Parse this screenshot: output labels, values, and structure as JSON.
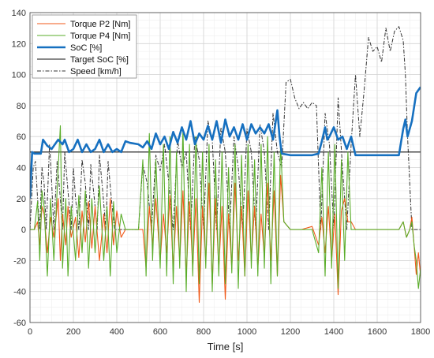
{
  "chart_data": {
    "type": "line",
    "title": "",
    "xlabel": "Time [s]",
    "ylabel": "",
    "xlim": [
      0,
      1800
    ],
    "ylim": [
      -60,
      140
    ],
    "xticks": [
      0,
      200,
      400,
      600,
      800,
      1000,
      1200,
      1400,
      1600,
      1800
    ],
    "yticks": [
      -60,
      -40,
      -20,
      0,
      20,
      40,
      60,
      80,
      100,
      120,
      140
    ],
    "xtick_labels": [
      "0",
      "200",
      "400",
      "600",
      "800",
      "1000",
      "1200",
      "1400",
      "1600",
      "1800"
    ],
    "ytick_labels": [
      "-60",
      "-40",
      "-20",
      "0",
      "20",
      "40",
      "60",
      "80",
      "100",
      "120",
      "140"
    ],
    "grid": true,
    "legend_position": "top-left",
    "series": [
      {
        "name": "Torque P2 [Nm]",
        "color": "#f05a1a",
        "style": "solid",
        "x": [
          0,
          20,
          35,
          45,
          55,
          65,
          80,
          95,
          110,
          130,
          140,
          150,
          165,
          175,
          190,
          210,
          225,
          240,
          255,
          270,
          285,
          300,
          320,
          340,
          355,
          370,
          385,
          400,
          420,
          440,
          460,
          500,
          520,
          535,
          550,
          565,
          580,
          600,
          615,
          630,
          645,
          660,
          675,
          690,
          705,
          720,
          735,
          750,
          765,
          780,
          795,
          810,
          825,
          840,
          855,
          870,
          885,
          900,
          915,
          930,
          945,
          960,
          975,
          990,
          1005,
          1020,
          1035,
          1050,
          1065,
          1080,
          1095,
          1110,
          1125,
          1140,
          1155,
          1170,
          1200,
          1250,
          1300,
          1330,
          1345,
          1360,
          1375,
          1390,
          1405,
          1420,
          1435,
          1450,
          1465,
          1480,
          1500,
          1550,
          1600,
          1650,
          1700,
          1720,
          1735,
          1750,
          1760,
          1770,
          1780,
          1790,
          1800
        ],
        "y": [
          0,
          0,
          5,
          -10,
          15,
          10,
          -15,
          8,
          -5,
          20,
          -20,
          10,
          -10,
          15,
          -5,
          8,
          -18,
          12,
          -8,
          18,
          -12,
          15,
          -20,
          10,
          -15,
          20,
          -10,
          12,
          -5,
          0,
          0,
          0,
          0,
          -25,
          15,
          -10,
          20,
          -20,
          10,
          -15,
          22,
          -25,
          15,
          -20,
          25,
          -30,
          18,
          -25,
          20,
          -47,
          15,
          -20,
          30,
          -35,
          20,
          -25,
          15,
          -45,
          10,
          -25,
          30,
          -20,
          15,
          -30,
          25,
          -20,
          15,
          -25,
          10,
          -18,
          30,
          -20,
          25,
          -30,
          35,
          5,
          0,
          0,
          2,
          -10,
          8,
          -15,
          15,
          -20,
          10,
          -42,
          12,
          20,
          5,
          5,
          0,
          0,
          0,
          0,
          0,
          5,
          -5,
          0,
          8,
          -10,
          -29,
          -15,
          -30
        ]
      },
      {
        "name": "Torque P4 [Nm]",
        "color": "#5aad2a",
        "style": "solid",
        "x": [
          0,
          20,
          35,
          45,
          55,
          65,
          80,
          95,
          110,
          130,
          140,
          150,
          165,
          175,
          190,
          210,
          225,
          240,
          255,
          270,
          285,
          300,
          320,
          340,
          355,
          370,
          385,
          400,
          420,
          440,
          460,
          500,
          520,
          535,
          550,
          565,
          580,
          600,
          615,
          630,
          645,
          660,
          675,
          690,
          705,
          720,
          735,
          750,
          765,
          780,
          795,
          810,
          825,
          840,
          855,
          870,
          885,
          900,
          915,
          930,
          945,
          960,
          975,
          990,
          1005,
          1020,
          1035,
          1050,
          1065,
          1080,
          1095,
          1110,
          1125,
          1140,
          1155,
          1170,
          1200,
          1250,
          1300,
          1330,
          1345,
          1360,
          1375,
          1390,
          1405,
          1420,
          1435,
          1450,
          1465,
          1480,
          1500,
          1550,
          1600,
          1650,
          1700,
          1720,
          1735,
          1750,
          1760,
          1770,
          1780,
          1790,
          1800
        ],
        "y": [
          0,
          0,
          18,
          -20,
          25,
          15,
          -30,
          20,
          -20,
          40,
          67,
          -25,
          20,
          -30,
          15,
          -20,
          22,
          -15,
          25,
          -25,
          20,
          -15,
          28,
          -20,
          15,
          -30,
          18,
          -15,
          10,
          0,
          0,
          0,
          45,
          -30,
          62,
          -20,
          45,
          -25,
          55,
          -30,
          60,
          -35,
          50,
          -25,
          65,
          -40,
          55,
          -30,
          60,
          -35,
          50,
          -25,
          55,
          -40,
          45,
          -30,
          50,
          -35,
          40,
          -28,
          55,
          -38,
          48,
          -30,
          55,
          -25,
          45,
          -30,
          55,
          -25,
          60,
          -35,
          50,
          -30,
          55,
          5,
          0,
          0,
          0,
          -15,
          40,
          -30,
          50,
          -25,
          55,
          -38,
          45,
          -20,
          50,
          0,
          0,
          0,
          0,
          0,
          0,
          5,
          -5,
          0,
          5,
          -10,
          -20,
          -38,
          -25
        ]
      },
      {
        "name": "SoC [%]",
        "color": "#1670c0",
        "style": "thick",
        "x": [
          0,
          10,
          20,
          50,
          60,
          80,
          100,
          130,
          150,
          160,
          180,
          200,
          220,
          240,
          260,
          280,
          300,
          320,
          340,
          360,
          380,
          400,
          420,
          440,
          460,
          500,
          520,
          540,
          560,
          580,
          600,
          620,
          640,
          660,
          680,
          700,
          720,
          740,
          760,
          780,
          800,
          820,
          840,
          860,
          880,
          900,
          920,
          940,
          960,
          980,
          1000,
          1020,
          1040,
          1060,
          1080,
          1100,
          1120,
          1140,
          1150,
          1160,
          1200,
          1250,
          1300,
          1330,
          1345,
          1360,
          1370,
          1380,
          1400,
          1420,
          1440,
          1460,
          1480,
          1500,
          1550,
          1600,
          1650,
          1700,
          1720,
          1730,
          1740,
          1760,
          1780,
          1800
        ],
        "y": [
          20,
          50,
          49,
          49,
          58,
          54,
          52,
          58,
          55,
          58,
          50,
          52,
          58,
          50,
          55,
          50,
          52,
          58,
          50,
          55,
          50,
          52,
          50,
          57,
          56,
          55,
          53,
          57,
          52,
          62,
          55,
          60,
          52,
          63,
          56,
          66,
          58,
          70,
          55,
          62,
          58,
          67,
          58,
          70,
          56,
          71,
          60,
          66,
          58,
          68,
          58,
          68,
          62,
          66,
          62,
          68,
          58,
          77,
          60,
          49,
          48,
          48,
          48,
          49,
          57,
          66,
          58,
          60,
          66,
          58,
          60,
          52,
          60,
          48,
          48,
          48,
          48,
          48,
          65,
          71,
          60,
          70,
          88,
          92
        ]
      },
      {
        "name": "Target SoC [%]",
        "color": "#111111",
        "style": "solid",
        "x": [
          0,
          1800
        ],
        "y": [
          50,
          50
        ]
      },
      {
        "name": "Speed [km/h]",
        "color": "#333333",
        "style": "dashdot",
        "x": [
          0,
          15,
          25,
          35,
          45,
          55,
          65,
          75,
          90,
          100,
          110,
          125,
          140,
          150,
          160,
          175,
          190,
          200,
          210,
          225,
          240,
          255,
          270,
          280,
          295,
          310,
          320,
          335,
          350,
          360,
          375,
          390,
          400,
          420,
          440,
          460,
          500,
          520,
          540,
          560,
          580,
          600,
          620,
          640,
          660,
          680,
          700,
          720,
          740,
          760,
          780,
          800,
          820,
          840,
          860,
          880,
          900,
          920,
          940,
          960,
          980,
          1000,
          1020,
          1040,
          1060,
          1080,
          1100,
          1120,
          1140,
          1160,
          1180,
          1200,
          1220,
          1240,
          1260,
          1280,
          1300,
          1320,
          1330,
          1340,
          1360,
          1380,
          1400,
          1420,
          1440,
          1460,
          1480,
          1500,
          1520,
          1540,
          1560,
          1580,
          1600,
          1620,
          1640,
          1660,
          1680,
          1700,
          1720,
          1730,
          1740,
          1760,
          1780,
          1800
        ],
        "y": [
          0,
          40,
          44,
          20,
          0,
          40,
          30,
          0,
          55,
          30,
          0,
          44,
          20,
          0,
          50,
          25,
          0,
          40,
          20,
          0,
          45,
          30,
          0,
          42,
          22,
          0,
          48,
          25,
          0,
          44,
          20,
          0,
          0,
          0,
          0,
          0,
          0,
          42,
          30,
          0,
          48,
          38,
          55,
          30,
          0,
          58,
          40,
          50,
          0,
          60,
          45,
          0,
          70,
          58,
          0,
          66,
          50,
          0,
          60,
          40,
          0,
          65,
          50,
          0,
          68,
          50,
          0,
          75,
          50,
          40,
          95,
          97,
          85,
          78,
          82,
          78,
          82,
          80,
          40,
          0,
          75,
          55,
          0,
          85,
          40,
          0,
          55,
          100,
          60,
          90,
          124,
          115,
          118,
          108,
          130,
          115,
          128,
          131,
          122,
          100,
          60,
          0,
          0,
          0
        ]
      }
    ]
  }
}
